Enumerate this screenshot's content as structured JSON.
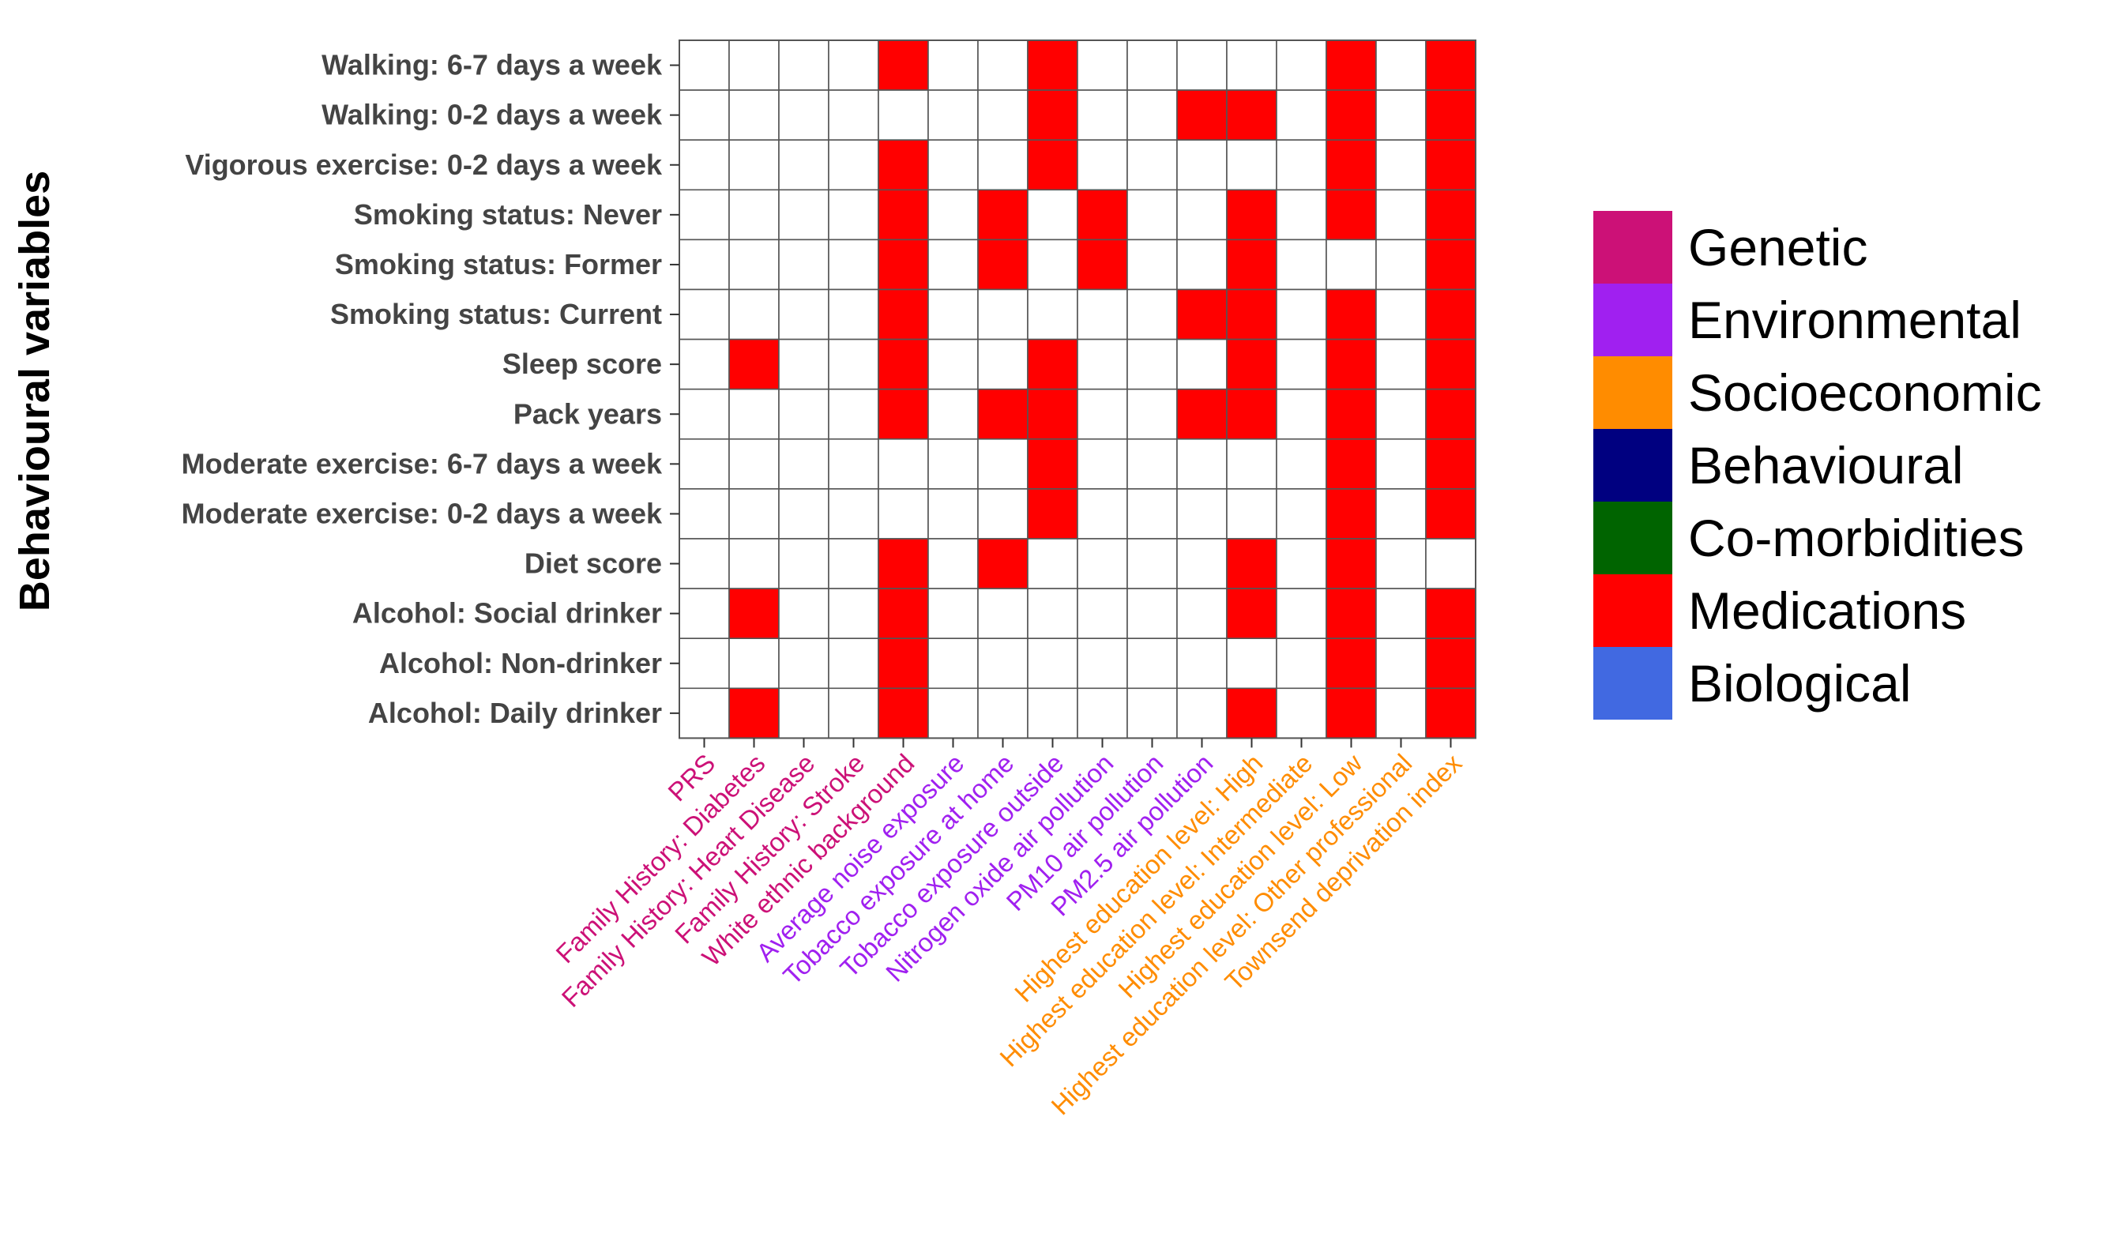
{
  "chart_data": {
    "type": "heatmap",
    "ylabel": "Behavioural variables",
    "xlabel": "",
    "y_categories": [
      "Walking: 6-7 days a week",
      "Walking: 0-2 days a week",
      "Vigorous exercise: 0-2 days a week",
      "Smoking status: Never",
      "Smoking status: Former",
      "Smoking status: Current",
      "Sleep score",
      "Pack years",
      "Moderate exercise: 6-7 days a week",
      "Moderate exercise: 0-2 days a week",
      "Diet score",
      "Alcohol: Social drinker",
      "Alcohol: Non-drinker",
      "Alcohol: Daily drinker"
    ],
    "x_categories": [
      {
        "label": "PRS",
        "group": "Genetic"
      },
      {
        "label": "Family History: Diabetes",
        "group": "Genetic"
      },
      {
        "label": "Family History: Heart Disease",
        "group": "Genetic"
      },
      {
        "label": "Family History: Stroke",
        "group": "Genetic"
      },
      {
        "label": "White ethnic background",
        "group": "Genetic"
      },
      {
        "label": "Average noise exposure",
        "group": "Environmental"
      },
      {
        "label": "Tobacco exposure at home",
        "group": "Environmental"
      },
      {
        "label": "Tobacco exposure outside",
        "group": "Environmental"
      },
      {
        "label": "Nitrogen oxide air pollution",
        "group": "Environmental"
      },
      {
        "label": "PM10 air pollution",
        "group": "Environmental"
      },
      {
        "label": "PM2.5 air pollution",
        "group": "Environmental"
      },
      {
        "label": "Highest education level: High",
        "group": "Socioeconomic"
      },
      {
        "label": "Highest education level: Intermediate",
        "group": "Socioeconomic"
      },
      {
        "label": "Highest education level: Low",
        "group": "Socioeconomic"
      },
      {
        "label": "Highest education level: Other professional",
        "group": "Socioeconomic"
      },
      {
        "label": "Townsend deprivation index",
        "group": "Socioeconomic"
      }
    ],
    "matrix": [
      [
        0,
        0,
        0,
        0,
        1,
        0,
        0,
        1,
        0,
        0,
        0,
        0,
        0,
        1,
        0,
        1
      ],
      [
        0,
        0,
        0,
        0,
        0,
        0,
        0,
        1,
        0,
        0,
        1,
        1,
        0,
        1,
        0,
        1
      ],
      [
        0,
        0,
        0,
        0,
        1,
        0,
        0,
        1,
        0,
        0,
        0,
        0,
        0,
        1,
        0,
        1
      ],
      [
        0,
        0,
        0,
        0,
        1,
        0,
        1,
        0,
        1,
        0,
        0,
        1,
        0,
        1,
        0,
        1
      ],
      [
        0,
        0,
        0,
        0,
        1,
        0,
        1,
        0,
        1,
        0,
        0,
        1,
        0,
        0,
        0,
        1
      ],
      [
        0,
        0,
        0,
        0,
        1,
        0,
        0,
        0,
        0,
        0,
        1,
        1,
        0,
        1,
        0,
        1
      ],
      [
        0,
        1,
        0,
        0,
        1,
        0,
        0,
        1,
        0,
        0,
        0,
        1,
        0,
        1,
        0,
        1
      ],
      [
        0,
        0,
        0,
        0,
        1,
        0,
        1,
        1,
        0,
        0,
        1,
        1,
        0,
        1,
        0,
        1
      ],
      [
        0,
        0,
        0,
        0,
        0,
        0,
        0,
        1,
        0,
        0,
        0,
        0,
        0,
        1,
        0,
        1
      ],
      [
        0,
        0,
        0,
        0,
        0,
        0,
        0,
        1,
        0,
        0,
        0,
        0,
        0,
        1,
        0,
        1
      ],
      [
        0,
        0,
        0,
        0,
        1,
        0,
        1,
        0,
        0,
        0,
        0,
        1,
        0,
        1,
        0,
        0
      ],
      [
        0,
        1,
        0,
        0,
        1,
        0,
        0,
        0,
        0,
        0,
        0,
        1,
        0,
        1,
        0,
        1
      ],
      [
        0,
        0,
        0,
        0,
        1,
        0,
        0,
        0,
        0,
        0,
        0,
        0,
        0,
        1,
        0,
        1
      ],
      [
        0,
        1,
        0,
        0,
        1,
        0,
        0,
        0,
        0,
        0,
        0,
        1,
        0,
        1,
        0,
        1
      ]
    ],
    "fill_color": "#FF0000",
    "empty_color": "#FFFFFF",
    "fill_group": "Medications",
    "legend": [
      {
        "label": "Genetic",
        "color": "#CC1177"
      },
      {
        "label": "Environmental",
        "color": "#A020F0"
      },
      {
        "label": "Socioeconomic",
        "color": "#FF8C00"
      },
      {
        "label": "Behavioural",
        "color": "#000080"
      },
      {
        "label": "Co-morbidities",
        "color": "#006400"
      },
      {
        "label": "Medications",
        "color": "#FF0000"
      },
      {
        "label": "Biological",
        "color": "#4169E1"
      }
    ],
    "legend_position": "right",
    "grid": true
  }
}
